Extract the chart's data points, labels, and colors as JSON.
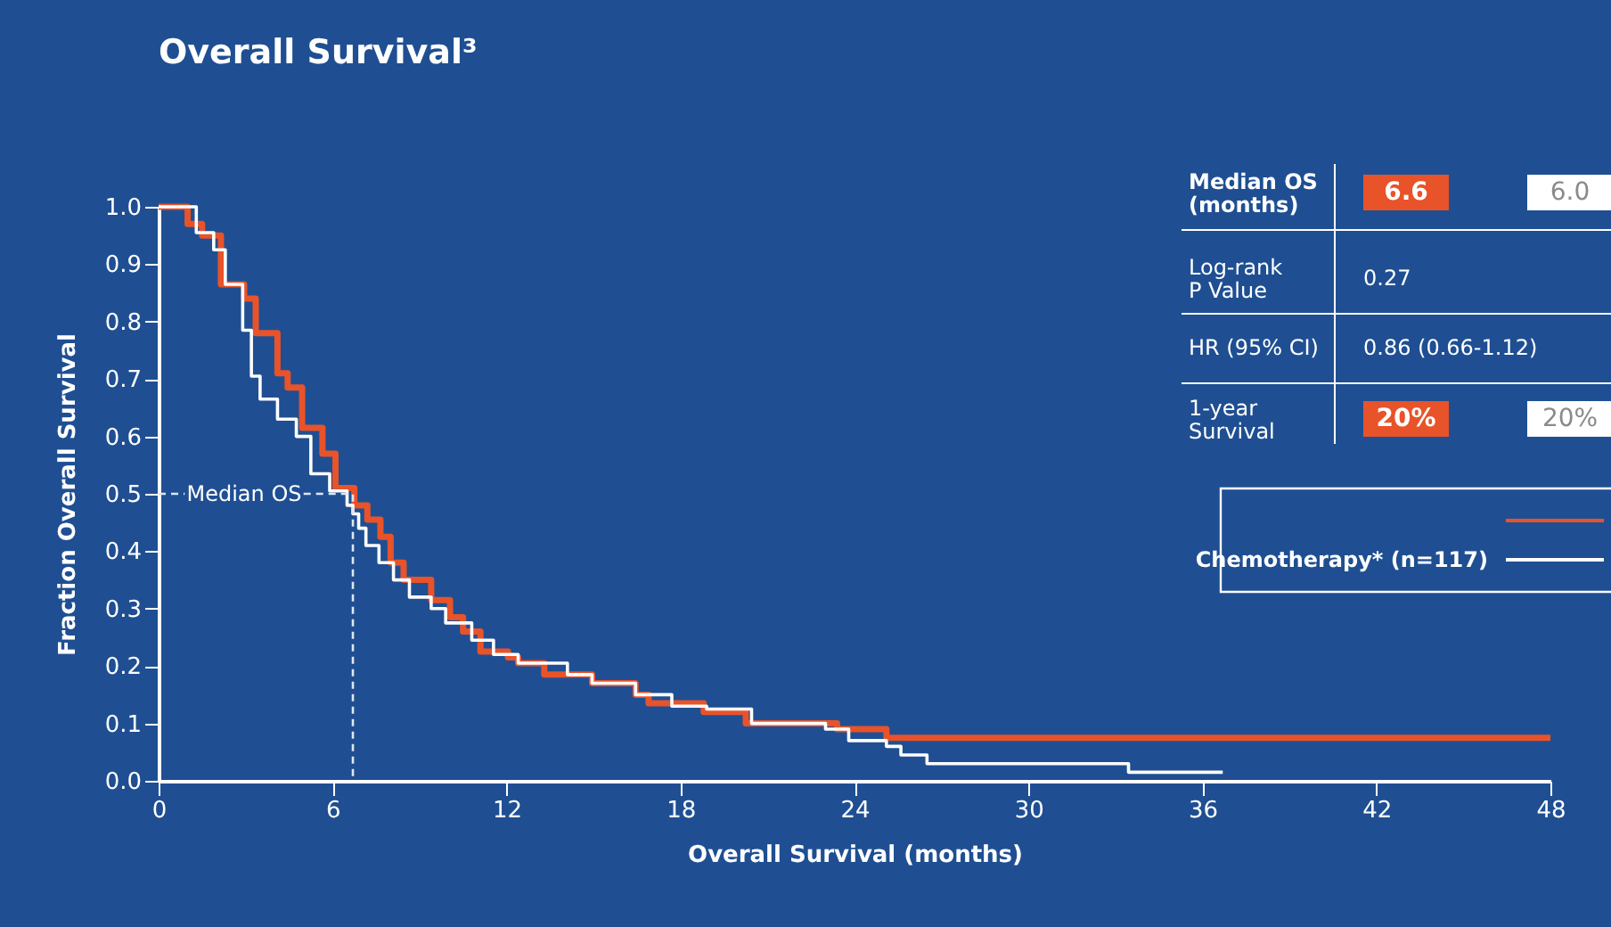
{
  "chart_data": {
    "type": "step",
    "title": "Overall Survival³",
    "xlabel": "Overall Survival (months)",
    "ylabel": "Fraction Overall Survival",
    "xlim": [
      0,
      48
    ],
    "xticks": [
      0,
      6,
      12,
      18,
      24,
      30,
      36,
      42,
      48
    ],
    "ylim": [
      0,
      1
    ],
    "yticks": [
      {
        "value": 0,
        "label": "0.0"
      },
      0.1,
      0.2,
      0.3,
      0.4,
      0.5,
      0.6,
      0.7,
      0.8,
      0.9,
      {
        "value": 1,
        "label": "1.0"
      }
    ],
    "grid": false,
    "legend": "right",
    "line_style": "solid",
    "marker": "none",
    "series": [
      {
        "color": "#e8532a",
        "x": [
          0,
          1.0,
          1.5,
          2.15,
          2.95,
          3.35,
          4.1,
          4.45,
          4.95,
          5.65,
          6.1,
          6.75,
          7.2,
          7.65,
          8.0,
          8.45,
          9.4,
          10.05,
          10.5,
          11.1,
          12.05,
          12.4,
          13.3,
          14.95,
          16.45,
          16.9,
          18.8,
          20.25,
          23.4,
          25.1,
          48
        ],
        "values": [
          1.0,
          0.97,
          0.95,
          0.865,
          0.84,
          0.78,
          0.71,
          0.685,
          0.615,
          0.57,
          0.51,
          0.48,
          0.455,
          0.425,
          0.38,
          0.35,
          0.315,
          0.285,
          0.26,
          0.225,
          0.215,
          0.205,
          0.185,
          0.17,
          0.15,
          0.135,
          0.12,
          0.1,
          0.09,
          0.075,
          0.075
        ]
      },
      {
        "name": "Chemotherapy* (n=117)",
        "color": "#ffffff",
        "x": [
          0,
          1.3,
          1.9,
          2.3,
          2.9,
          3.2,
          3.5,
          4.1,
          4.75,
          5.25,
          5.9,
          6.5,
          6.7,
          6.9,
          7.15,
          7.6,
          8.1,
          8.65,
          9.4,
          9.9,
          10.8,
          11.55,
          12.4,
          14.1,
          14.95,
          16.45,
          17.7,
          18.9,
          20.45,
          23.0,
          23.8,
          25.1,
          25.6,
          26.5,
          33.45,
          36.7
        ],
        "values": [
          1.0,
          0.955,
          0.925,
          0.865,
          0.785,
          0.705,
          0.665,
          0.63,
          0.6,
          0.535,
          0.505,
          0.48,
          0.465,
          0.44,
          0.41,
          0.38,
          0.35,
          0.32,
          0.3,
          0.275,
          0.245,
          0.22,
          0.205,
          0.185,
          0.17,
          0.15,
          0.13,
          0.125,
          0.1,
          0.09,
          0.07,
          0.06,
          0.045,
          0.03,
          0.015,
          0.015
        ]
      },
      {
        "type": "line",
        "line_style": "dashed",
        "color": "#dde6f2",
        "x": [
          0,
          0.9,
          0.95,
          5.0,
          6.7,
          6.7
        ],
        "values": [
          0.5,
          0.5,
          null,
          0.5,
          0.5,
          0
        ]
      }
    ],
    "annotations": [
      "Median OS",
      "Median OS (months)",
      "6.6",
      "6.0",
      "Log-rank P Value",
      "0.27",
      "HR (95% CI)",
      "0.86 (0.66-1.12)",
      "1-year Survival",
      "20%",
      "20%"
    ]
  }
}
